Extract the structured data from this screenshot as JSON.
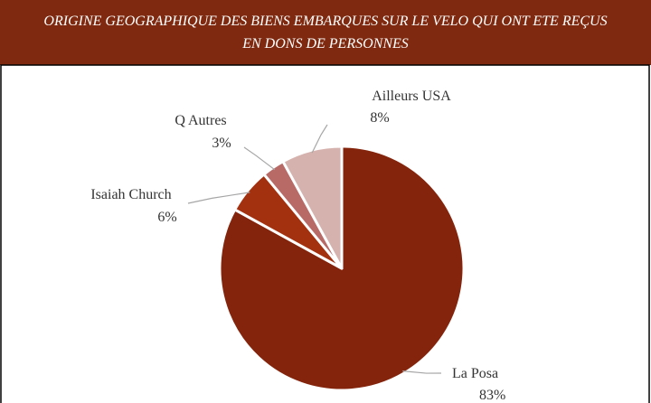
{
  "chart_data": {
    "type": "pie",
    "title": "ORIGINE GEOGRAPHIQUE DES BIENS EMBARQUES SUR LE VELO QUI ONT ETE REÇUS EN DONS DE PERSONNES",
    "categories": [
      "La Posa",
      "Isaiah Church",
      "Q Autres",
      "Ailleurs USA"
    ],
    "values": [
      83,
      6,
      3,
      8
    ],
    "value_labels": [
      "83%",
      "6%",
      "3%",
      "8%"
    ],
    "colors": [
      "#84240c",
      "#a3300f",
      "#b86a66",
      "#d5b2ae"
    ]
  }
}
